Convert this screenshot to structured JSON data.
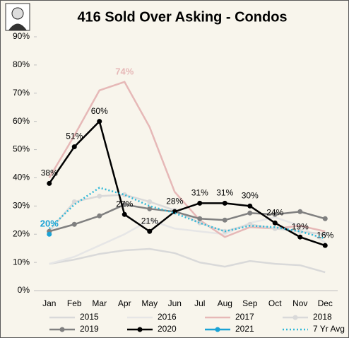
{
  "chart_data": {
    "type": "line",
    "title": "416 Sold Over Asking - Condos",
    "categories": [
      "Jan",
      "Feb",
      "Mar",
      "Apr",
      "May",
      "Jun",
      "Jul",
      "Aug",
      "Sep",
      "Oct",
      "Nov",
      "Dec"
    ],
    "ylim": [
      0,
      90
    ],
    "yticks": [
      {
        "value": 0,
        "label": "0%"
      },
      {
        "value": 10,
        "label": "10%"
      },
      {
        "value": 20,
        "label": "20%"
      },
      {
        "value": 30,
        "label": "30%"
      },
      {
        "value": 40,
        "label": "40%"
      },
      {
        "value": 50,
        "label": "50%"
      },
      {
        "value": 60,
        "label": "60%"
      },
      {
        "value": 70,
        "label": "70%"
      },
      {
        "value": 80,
        "label": "80%"
      },
      {
        "value": 90,
        "label": "90%"
      }
    ],
    "grid": false,
    "legend": "bottom",
    "series": [
      {
        "name": "2015",
        "color": "#d9d9d9",
        "values": [
          9.5,
          11,
          13,
          14.3,
          14.8,
          13.3,
          10,
          8.5,
          10.5,
          9.5,
          9,
          6.5
        ]
      },
      {
        "name": "2016",
        "color": "#e6e6e6",
        "values": [
          9.5,
          12,
          16,
          20,
          25,
          22,
          21,
          20,
          24,
          26,
          23,
          17
        ]
      },
      {
        "name": "2017",
        "color": "#e6b8b7",
        "values": [
          40,
          55,
          71,
          74,
          58,
          35,
          25,
          19,
          22.5,
          22,
          23,
          21
        ],
        "value_labels": [
          null,
          null,
          null,
          "74%",
          null,
          null,
          null,
          null,
          null,
          null,
          null,
          null
        ]
      },
      {
        "name": "2018",
        "color": "#d9d9d9",
        "marker": true,
        "values": [
          21,
          31.5,
          33.5,
          34,
          31.5,
          28.5,
          24,
          21,
          23.5,
          22,
          21,
          20
        ]
      },
      {
        "name": "2019",
        "color": "#808080",
        "marker": true,
        "values": [
          21,
          23.5,
          26.5,
          30.5,
          29,
          28,
          25.5,
          25,
          27.5,
          27,
          28,
          25.5
        ]
      },
      {
        "name": "2020",
        "color": "#000000",
        "marker": true,
        "values": [
          38,
          51,
          60,
          27,
          21,
          28,
          31,
          31,
          30,
          24,
          19,
          16
        ],
        "value_labels": [
          "38%",
          "51%",
          "60%",
          "27%",
          "21%",
          "28%",
          "31%",
          "31%",
          "30%",
          "24%",
          "19%",
          "16%"
        ]
      },
      {
        "name": "2021",
        "color": "#1aa3d6",
        "marker": true,
        "values": [
          20,
          null,
          null,
          null,
          null,
          null,
          null,
          null,
          null,
          null,
          null,
          null
        ],
        "value_labels": [
          "20%",
          null,
          null,
          null,
          null,
          null,
          null,
          null,
          null,
          null,
          null,
          null
        ]
      },
      {
        "name": "7 Yr Avg",
        "color": "#2eb8d8",
        "style": "dotted",
        "values": [
          22,
          30.5,
          36.5,
          34,
          30,
          27.5,
          24,
          21,
          23,
          22.5,
          21,
          18.5
        ]
      }
    ]
  }
}
